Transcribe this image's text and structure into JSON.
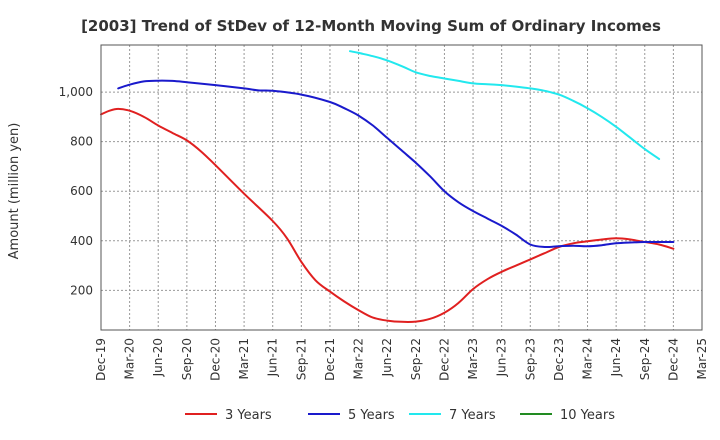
{
  "chart_data": {
    "type": "line",
    "title": "[2003]  Trend of StDev of 12-Month Moving Sum of Ordinary Incomes",
    "ylabel": "Amount (million yen)",
    "xlabel": "",
    "ylim": [
      40,
      1190
    ],
    "yticks": [
      200,
      400,
      600,
      800,
      1000
    ],
    "ytick_labels": [
      "200",
      "400",
      "600",
      "800",
      "1,000"
    ],
    "grid": true,
    "legend_position": "bottom",
    "x_categories": [
      "Dec-19",
      "Mar-20",
      "Jun-20",
      "Sep-20",
      "Dec-20",
      "Mar-21",
      "Jun-21",
      "Sep-21",
      "Dec-21",
      "Mar-22",
      "Jun-22",
      "Sep-22",
      "Dec-22",
      "Mar-23",
      "Jun-23",
      "Sep-23",
      "Dec-23",
      "Mar-24",
      "Jun-24",
      "Sep-24",
      "Dec-24",
      "Mar-25"
    ],
    "series": [
      {
        "name": "3 Years",
        "color": "#e02020",
        "points": [
          [
            0,
            910
          ],
          [
            0.3,
            925
          ],
          [
            0.6,
            932
          ],
          [
            1,
            925
          ],
          [
            1.5,
            900
          ],
          [
            2,
            865
          ],
          [
            2.5,
            835
          ],
          [
            3,
            805
          ],
          [
            3.5,
            760
          ],
          [
            4,
            705
          ],
          [
            5,
            590
          ],
          [
            6,
            480
          ],
          [
            6.5,
            410
          ],
          [
            7,
            315
          ],
          [
            7.5,
            240
          ],
          [
            8,
            195
          ],
          [
            8.5,
            155
          ],
          [
            9,
            120
          ],
          [
            9.5,
            90
          ],
          [
            10,
            78
          ],
          [
            10.5,
            73
          ],
          [
            11,
            74
          ],
          [
            11.5,
            85
          ],
          [
            12,
            110
          ],
          [
            12.5,
            150
          ],
          [
            13,
            205
          ],
          [
            13.5,
            245
          ],
          [
            14,
            275
          ],
          [
            14.5,
            300
          ],
          [
            15,
            325
          ],
          [
            15.5,
            350
          ],
          [
            16,
            375
          ],
          [
            16.5,
            390
          ],
          [
            17,
            398
          ],
          [
            17.5,
            405
          ],
          [
            18,
            410
          ],
          [
            18.5,
            405
          ],
          [
            19,
            395
          ],
          [
            19.5,
            385
          ],
          [
            20,
            368
          ]
        ]
      },
      {
        "name": "5 Years",
        "color": "#1a1acc",
        "points": [
          [
            0.6,
            1015
          ],
          [
            1,
            1030
          ],
          [
            1.5,
            1043
          ],
          [
            2,
            1046
          ],
          [
            2.5,
            1045
          ],
          [
            3,
            1040
          ],
          [
            4,
            1028
          ],
          [
            5,
            1015
          ],
          [
            5.5,
            1007
          ],
          [
            6,
            1005
          ],
          [
            7,
            990
          ],
          [
            8,
            960
          ],
          [
            8.5,
            935
          ],
          [
            9,
            905
          ],
          [
            9.5,
            865
          ],
          [
            10,
            815
          ],
          [
            10.5,
            765
          ],
          [
            11,
            715
          ],
          [
            11.5,
            660
          ],
          [
            12,
            600
          ],
          [
            12.5,
            555
          ],
          [
            13,
            520
          ],
          [
            13.5,
            490
          ],
          [
            14,
            460
          ],
          [
            14.5,
            425
          ],
          [
            15,
            385
          ],
          [
            15.5,
            375
          ],
          [
            16,
            378
          ],
          [
            16.5,
            380
          ],
          [
            17,
            378
          ],
          [
            17.5,
            382
          ],
          [
            18,
            390
          ],
          [
            18.5,
            393
          ],
          [
            19,
            395
          ],
          [
            19.5,
            395
          ],
          [
            20,
            395
          ]
        ]
      },
      {
        "name": "7 Years",
        "color": "#22e8ee",
        "points": [
          [
            8.7,
            1165
          ],
          [
            9,
            1158
          ],
          [
            9.5,
            1145
          ],
          [
            10,
            1128
          ],
          [
            10.5,
            1105
          ],
          [
            11,
            1080
          ],
          [
            11.5,
            1065
          ],
          [
            12,
            1055
          ],
          [
            12.5,
            1045
          ],
          [
            13,
            1035
          ],
          [
            13.5,
            1032
          ],
          [
            14,
            1028
          ],
          [
            14.5,
            1022
          ],
          [
            15,
            1015
          ],
          [
            15.5,
            1005
          ],
          [
            16,
            990
          ],
          [
            16.5,
            965
          ],
          [
            17,
            935
          ],
          [
            17.5,
            900
          ],
          [
            18,
            860
          ],
          [
            18.5,
            815
          ],
          [
            19,
            770
          ],
          [
            19.5,
            730
          ]
        ]
      },
      {
        "name": "10 Years",
        "color": "#228b22",
        "points": []
      }
    ]
  }
}
